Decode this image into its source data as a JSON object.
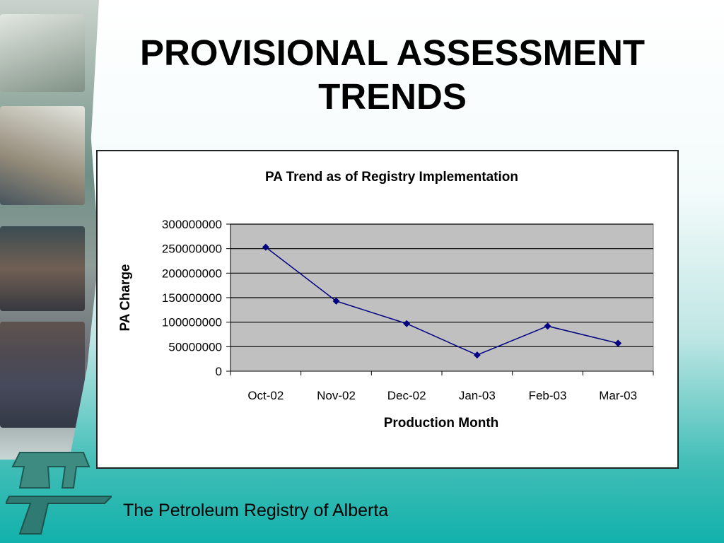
{
  "slide": {
    "title_line1": "PROVISIONAL ASSESSMENT",
    "title_line2": "TRENDS",
    "footer": "The Petroleum Registry of Alberta"
  },
  "chart_data": {
    "type": "line",
    "title": "PA Trend as of Registry Implementation",
    "xlabel": "Production Month",
    "ylabel": "PA Charge",
    "categories": [
      "Oct-02",
      "Nov-02",
      "Dec-02",
      "Jan-03",
      "Feb-03",
      "Mar-03"
    ],
    "series": [
      {
        "values": [
          253000000,
          143000000,
          97000000,
          33000000,
          92000000,
          57000000
        ],
        "color": "#000080"
      }
    ],
    "ylim": [
      0,
      300000000
    ],
    "yticks": [
      "0",
      "50000000",
      "100000000",
      "150000000",
      "200000000",
      "250000000",
      "300000000"
    ],
    "grid": true,
    "plot_background": "#c0c0c0",
    "marker": "diamond"
  }
}
